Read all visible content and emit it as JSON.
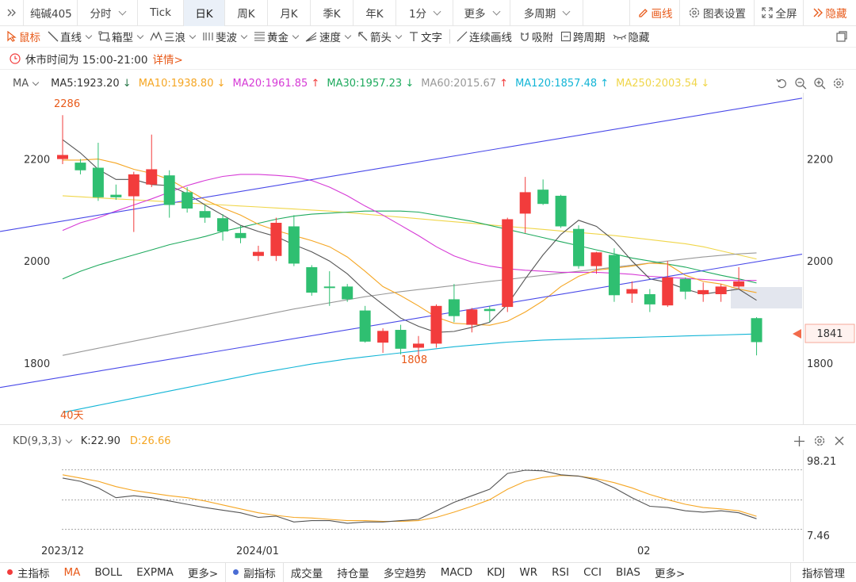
{
  "topbar": {
    "symbol": "纯碱405",
    "items": [
      "分时",
      "Tick",
      "日K",
      "周K",
      "月K",
      "季K",
      "年K",
      "1分",
      "更多",
      "多周期"
    ],
    "active": "日K",
    "right": [
      "画线",
      "图表设置",
      "全屏",
      "隐藏"
    ]
  },
  "drawbar": {
    "tools": [
      "鼠标",
      "直线",
      "箱型",
      "三浪",
      "斐波",
      "黄金",
      "速度",
      "箭头",
      "文字",
      "连续画线",
      "吸附",
      "跨周期",
      "隐藏"
    ]
  },
  "notice": {
    "text": "休市时间为 15:00-21:00",
    "link": "详情>"
  },
  "ma": {
    "label": "MA",
    "items": [
      {
        "text": "MA5:1923.20",
        "arrow": "↓",
        "color": "#333333"
      },
      {
        "text": "MA10:1938.80",
        "arrow": "↓",
        "color": "#f5a623"
      },
      {
        "text": "MA20:1961.85",
        "arrow": "↑",
        "color": "#d63ad6"
      },
      {
        "text": "MA30:1957.23",
        "arrow": "↓",
        "color": "#1faa5e"
      },
      {
        "text": "MA60:2015.67",
        "arrow": "↑",
        "color": "#999999"
      },
      {
        "text": "MA120:1857.48",
        "arrow": "↑",
        "color": "#13b5d6"
      },
      {
        "text": "MA250:2003.54",
        "arrow": "↓",
        "color": "#f0d64a"
      }
    ]
  },
  "kd": {
    "label": "KD(9,3,3)",
    "k": "K:22.90",
    "d": "D:26.66",
    "ymax": "98.21",
    "ymin": "7.46"
  },
  "chart": {
    "y_ticks": [
      "2200",
      "2000",
      "1800"
    ],
    "high_label": "2286",
    "low_label": "1808",
    "range_label": "40天",
    "last_price": "1841",
    "x_labels": [
      "2023/12",
      "2024/01",
      "02"
    ]
  },
  "colors": {
    "up": "#f23c3c",
    "down": "#2fbf71",
    "accent": "#e85a1a"
  },
  "chart_data": {
    "type": "candlestick",
    "ylim": [
      1680,
      2330
    ],
    "candles": [
      {
        "o": 2200,
        "h": 2286,
        "l": 2190,
        "c": 2208
      },
      {
        "o": 2193,
        "h": 2200,
        "l": 2170,
        "c": 2178
      },
      {
        "o": 2183,
        "h": 2232,
        "l": 2118,
        "c": 2125
      },
      {
        "o": 2130,
        "h": 2150,
        "l": 2120,
        "c": 2125
      },
      {
        "o": 2127,
        "h": 2175,
        "l": 2057,
        "c": 2170
      },
      {
        "o": 2150,
        "h": 2248,
        "l": 2145,
        "c": 2180
      },
      {
        "o": 2168,
        "h": 2178,
        "l": 2085,
        "c": 2110
      },
      {
        "o": 2135,
        "h": 2145,
        "l": 2095,
        "c": 2103
      },
      {
        "o": 2098,
        "h": 2110,
        "l": 2075,
        "c": 2085
      },
      {
        "o": 2084,
        "h": 2092,
        "l": 2040,
        "c": 2058
      },
      {
        "o": 2055,
        "h": 2070,
        "l": 2035,
        "c": 2045
      },
      {
        "o": 2010,
        "h": 2030,
        "l": 2000,
        "c": 2018
      },
      {
        "o": 2010,
        "h": 2085,
        "l": 2000,
        "c": 2075
      },
      {
        "o": 2068,
        "h": 2090,
        "l": 1990,
        "c": 1995
      },
      {
        "o": 1988,
        "h": 1992,
        "l": 1932,
        "c": 1938
      },
      {
        "o": 1950,
        "h": 1980,
        "l": 1912,
        "c": 1947
      },
      {
        "o": 1950,
        "h": 1955,
        "l": 1920,
        "c": 1925
      },
      {
        "o": 1903,
        "h": 1912,
        "l": 1840,
        "c": 1842
      },
      {
        "o": 1840,
        "h": 1868,
        "l": 1820,
        "c": 1863
      },
      {
        "o": 1865,
        "h": 1875,
        "l": 1817,
        "c": 1828
      },
      {
        "o": 1830,
        "h": 1853,
        "l": 1808,
        "c": 1838
      },
      {
        "o": 1838,
        "h": 1915,
        "l": 1830,
        "c": 1912
      },
      {
        "o": 1925,
        "h": 1955,
        "l": 1880,
        "c": 1892
      },
      {
        "o": 1875,
        "h": 1908,
        "l": 1860,
        "c": 1905
      },
      {
        "o": 1906,
        "h": 1912,
        "l": 1880,
        "c": 1902
      },
      {
        "o": 1910,
        "h": 2085,
        "l": 1900,
        "c": 2082
      },
      {
        "o": 2093,
        "h": 2165,
        "l": 2055,
        "c": 2135
      },
      {
        "o": 2140,
        "h": 2160,
        "l": 2110,
        "c": 2112
      },
      {
        "o": 2128,
        "h": 2130,
        "l": 2065,
        "c": 2068
      },
      {
        "o": 2063,
        "h": 2070,
        "l": 1985,
        "c": 1990
      },
      {
        "o": 1990,
        "h": 2018,
        "l": 1975,
        "c": 2017
      },
      {
        "o": 2012,
        "h": 2025,
        "l": 1920,
        "c": 1933
      },
      {
        "o": 1936,
        "h": 1960,
        "l": 1918,
        "c": 1945
      },
      {
        "o": 1935,
        "h": 1945,
        "l": 1900,
        "c": 1915
      },
      {
        "o": 1913,
        "h": 2000,
        "l": 1910,
        "c": 1968
      },
      {
        "o": 1965,
        "h": 1968,
        "l": 1925,
        "c": 1940
      },
      {
        "o": 1935,
        "h": 1958,
        "l": 1920,
        "c": 1943
      },
      {
        "o": 1935,
        "h": 1955,
        "l": 1920,
        "c": 1950
      },
      {
        "o": 1950,
        "h": 1988,
        "l": 1945,
        "c": 1960
      },
      {
        "o": 1888,
        "h": 1890,
        "l": 1815,
        "c": 1841
      }
    ],
    "ma5": [
      2238,
      2212,
      2180,
      2160,
      2160,
      2150,
      2148,
      2132,
      2110,
      2090,
      2070,
      2058,
      2048,
      2032,
      2018,
      2000,
      1975,
      1942,
      1915,
      1888,
      1872,
      1860,
      1862,
      1870,
      1880,
      1915,
      1965,
      2012,
      2052,
      2080,
      2068,
      2040,
      2000,
      1965,
      1958,
      1945,
      1935,
      1940,
      1945,
      1923
    ],
    "ma10": [
      2198,
      2198,
      2200,
      2192,
      2180,
      2172,
      2160,
      2140,
      2120,
      2104,
      2090,
      2072,
      2060,
      2050,
      2040,
      2028,
      2008,
      1980,
      1950,
      1932,
      1912,
      1890,
      1878,
      1876,
      1874,
      1882,
      1900,
      1922,
      1950,
      1970,
      1982,
      1986,
      1990,
      1996,
      1994,
      1972,
      1960,
      1955,
      1945,
      1938
    ],
    "ma20": [
      2060,
      2075,
      2085,
      2098,
      2110,
      2122,
      2135,
      2148,
      2158,
      2166,
      2170,
      2170,
      2168,
      2165,
      2158,
      2145,
      2128,
      2108,
      2090,
      2070,
      2050,
      2028,
      2010,
      1998,
      1990,
      1985,
      1982,
      1980,
      1978,
      1978,
      1978,
      1976,
      1974,
      1970,
      1968,
      1966,
      1964,
      1962,
      1962,
      1962
    ],
    "ma30": [
      1965,
      1980,
      1992,
      2002,
      2012,
      2022,
      2032,
      2040,
      2048,
      2058,
      2066,
      2074,
      2082,
      2088,
      2092,
      2094,
      2096,
      2098,
      2098,
      2098,
      2096,
      2090,
      2084,
      2078,
      2070,
      2062,
      2054,
      2046,
      2038,
      2030,
      2022,
      2014,
      2006,
      2000,
      1994,
      1988,
      1980,
      1972,
      1965,
      1957
    ],
    "ma60": [
      1815,
      1822,
      1829,
      1836,
      1843,
      1850,
      1857,
      1864,
      1871,
      1878,
      1885,
      1892,
      1899,
      1906,
      1912,
      1918,
      1924,
      1930,
      1935,
      1940,
      1944,
      1948,
      1952,
      1956,
      1960,
      1964,
      1968,
      1972,
      1976,
      1980,
      1984,
      1988,
      1992,
      1996,
      2000,
      2004,
      2008,
      2011,
      2014,
      2016
    ],
    "ma120": [
      1703,
      1710,
      1717,
      1724,
      1731,
      1738,
      1745,
      1752,
      1759,
      1766,
      1773,
      1780,
      1786,
      1792,
      1798,
      1803,
      1808,
      1812,
      1816,
      1820,
      1824,
      1828,
      1832,
      1835,
      1838,
      1841,
      1843,
      1845,
      1846,
      1847,
      1848,
      1849,
      1850,
      1851,
      1852,
      1853,
      1854,
      1855,
      1856,
      1857
    ],
    "ma250": [
      2128,
      2126,
      2124,
      2122,
      2120,
      2118,
      2116,
      2114,
      2112,
      2110,
      2108,
      2106,
      2104,
      2102,
      2100,
      2098,
      2095,
      2092,
      2089,
      2086,
      2083,
      2080,
      2077,
      2074,
      2071,
      2068,
      2065,
      2062,
      2059,
      2056,
      2053,
      2050,
      2046,
      2042,
      2038,
      2034,
      2028,
      2020,
      2012,
      2004
    ],
    "trend_lines": [
      {
        "from": [
          0,
          2058
        ],
        "to": [
          40,
          2290
        ],
        "color": "#4848e8"
      },
      {
        "from": [
          0,
          1752
        ],
        "to": [
          40,
          1984
        ],
        "color": "#4848e8"
      }
    ],
    "kd_k": [
      85,
      80,
      70,
      55,
      58,
      55,
      50,
      45,
      40,
      36,
      32,
      25,
      27,
      18,
      20,
      20,
      16,
      18,
      18,
      20,
      22,
      35,
      48,
      58,
      68,
      92,
      97,
      96,
      90,
      88,
      82,
      70,
      55,
      42,
      40,
      35,
      33,
      35,
      32,
      22.9
    ],
    "kd_d": [
      90,
      85,
      80,
      72,
      66,
      62,
      58,
      55,
      50,
      44,
      38,
      32,
      28,
      25,
      24,
      22,
      20,
      20,
      19,
      19,
      20,
      25,
      33,
      42,
      52,
      68,
      80,
      86,
      89,
      88,
      84,
      78,
      70,
      60,
      52,
      45,
      40,
      38,
      35,
      26.66
    ],
    "kd_ylim": [
      7.46,
      98.21
    ]
  }
}
